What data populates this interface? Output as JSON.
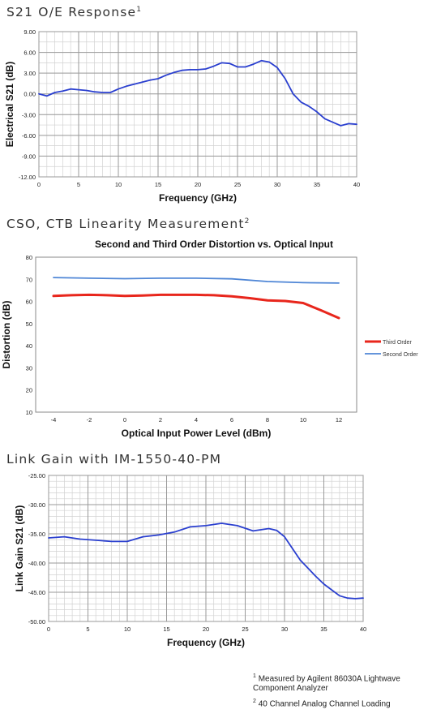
{
  "sections": [
    {
      "title": "S21 O/E Response",
      "sup": "1"
    },
    {
      "title": "CSO, CTB Linearity Measurement",
      "sup": "2"
    },
    {
      "title": "Link Gain with IM-1550-40-PM",
      "sup": ""
    }
  ],
  "footnotes": [
    {
      "mark": "1",
      "text": "Measured by Agilent 86030A Lightwave Component Analyzer"
    },
    {
      "mark": "2",
      "text": "40 Channel Analog Channel Loading"
    }
  ],
  "colors": {
    "blue": "#2a3fcf",
    "red": "#e8261c",
    "lightblue": "#4f86d6",
    "grid": "#c8c8c8"
  },
  "chart_data": [
    {
      "type": "line",
      "title": "",
      "xlabel": "Frequency (GHz)",
      "ylabel": "Electrical S21 (dB)",
      "xlim": [
        0,
        40
      ],
      "ylim": [
        -12,
        9
      ],
      "xticks": [
        "0",
        "5",
        "10",
        "15",
        "20",
        "25",
        "30",
        "35",
        "40"
      ],
      "yticks": [
        "9.00",
        "6.00",
        "3.00",
        "0.00",
        "-3.00",
        "-6.00",
        "-9.00",
        "-12.00"
      ],
      "grid": true,
      "series": [
        {
          "color": "#2a3fcf",
          "x": [
            0,
            1,
            2,
            3,
            4,
            5,
            6,
            7,
            8,
            9,
            10,
            11,
            12,
            13,
            14,
            15,
            16,
            17,
            18,
            19,
            20,
            21,
            22,
            23,
            24,
            25,
            26,
            27,
            28,
            29,
            30,
            31,
            32,
            33,
            34,
            35,
            36,
            37,
            38,
            39,
            40
          ],
          "y": [
            0,
            -0.3,
            0.2,
            0.4,
            0.7,
            0.6,
            0.5,
            0.3,
            0.2,
            0.2,
            0.7,
            1.1,
            1.4,
            1.7,
            2.0,
            2.2,
            2.7,
            3.1,
            3.4,
            3.5,
            3.5,
            3.6,
            4.0,
            4.5,
            4.4,
            3.9,
            3.9,
            4.3,
            4.8,
            4.6,
            3.8,
            2.2,
            0.0,
            -1.2,
            -1.8,
            -2.6,
            -3.6,
            -4.1,
            -4.6,
            -4.3,
            -4.4
          ]
        }
      ]
    },
    {
      "type": "line",
      "title": "Second and Third Order Distortion vs. Optical Input",
      "xlabel": "Optical Input Power Level (dBm)",
      "ylabel": "Distortion (dB)",
      "xlim": [
        -5,
        13
      ],
      "ylim": [
        10,
        80
      ],
      "xticks": [
        "-4",
        "-2",
        "0",
        "2",
        "4",
        "6",
        "8",
        "10",
        "12"
      ],
      "yticks": [
        "80",
        "70",
        "60",
        "50",
        "40",
        "30",
        "20",
        "10"
      ],
      "grid": false,
      "legend": "right",
      "series": [
        {
          "name": "Third Order",
          "color": "#e8261c",
          "x": [
            -4,
            -3,
            -2,
            -1,
            0,
            1,
            2,
            3,
            4,
            5,
            6,
            7,
            8,
            9,
            10,
            11,
            12
          ],
          "y": [
            62.5,
            62.8,
            63.0,
            62.8,
            62.5,
            62.7,
            63.0,
            63.0,
            63.0,
            62.8,
            62.3,
            61.5,
            60.5,
            60.2,
            59.3,
            56.0,
            52.5
          ]
        },
        {
          "name": "Second Order",
          "color": "#4f86d6",
          "x": [
            -4,
            -2,
            0,
            2,
            4,
            6,
            8,
            10,
            12
          ],
          "y": [
            70.8,
            70.5,
            70.3,
            70.5,
            70.5,
            70.2,
            69.0,
            68.5,
            68.3
          ]
        }
      ]
    },
    {
      "type": "line",
      "title": "",
      "xlabel": "Frequency (GHz)",
      "ylabel": "Link Gain S21 (dB)",
      "xlim": [
        0,
        40
      ],
      "ylim": [
        -50,
        -25
      ],
      "xticks": [
        "0",
        "5",
        "10",
        "15",
        "20",
        "25",
        "30",
        "35",
        "40"
      ],
      "yticks": [
        "-25.00",
        "-30.00",
        "-35.00",
        "-40.00",
        "-45.00",
        "-50.00"
      ],
      "grid": true,
      "series": [
        {
          "color": "#2a3fcf",
          "x": [
            0,
            2,
            4,
            6,
            8,
            10,
            12,
            14,
            16,
            18,
            20,
            22,
            24,
            26,
            28,
            29,
            30,
            32,
            34,
            35,
            36,
            37,
            38,
            39,
            40
          ],
          "y": [
            -35.7,
            -35.5,
            -35.9,
            -36.1,
            -36.3,
            -36.3,
            -35.5,
            -35.2,
            -34.7,
            -33.8,
            -33.6,
            -33.2,
            -33.6,
            -34.5,
            -34.1,
            -34.4,
            -35.5,
            -39.5,
            -42.3,
            -43.6,
            -44.6,
            -45.6,
            -46.0,
            -46.1,
            -46.0
          ]
        }
      ]
    }
  ]
}
